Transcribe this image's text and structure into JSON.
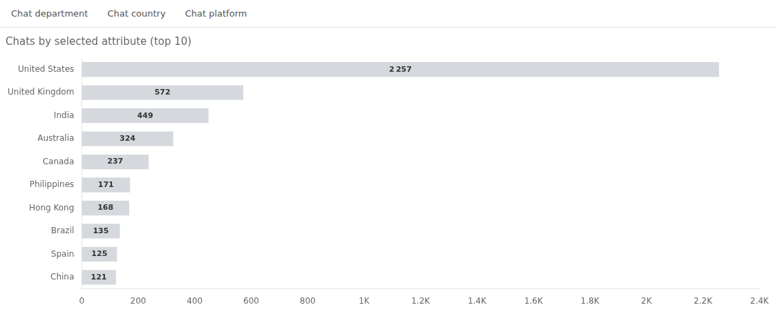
{
  "chart_data": {
    "type": "bar",
    "orientation": "horizontal",
    "title": "Chats by selected attribute (top 10)",
    "annotations": [
      "Chat department",
      "Chat country",
      "Chat platform"
    ],
    "categories": [
      "United States",
      "United Kingdom",
      "India",
      "Australia",
      "Canada",
      "Philippines",
      "Hong Kong",
      "Brazil",
      "Spain",
      "China"
    ],
    "values": [
      2257,
      572,
      449,
      324,
      237,
      171,
      168,
      135,
      125,
      121
    ],
    "value_labels": [
      "2 257",
      "572",
      "449",
      "324",
      "237",
      "171",
      "168",
      "135",
      "125",
      "121"
    ],
    "data_labels": true,
    "color": "#d5d9de",
    "xlim": [
      0,
      2400
    ],
    "xticks": [
      0,
      200,
      400,
      600,
      800,
      {
        "value": 1000,
        "label": "1K"
      },
      {
        "value": 1200,
        "label": "1.2K"
      },
      {
        "value": 1400,
        "label": "1.4K"
      },
      {
        "value": 1600,
        "label": "1.6K"
      },
      {
        "value": 1800,
        "label": "1.8K"
      },
      {
        "value": 2000,
        "label": "2K"
      },
      {
        "value": 2200,
        "label": "2.2K"
      },
      {
        "value": 2400,
        "label": "2.4K"
      }
    ],
    "grid": false
  }
}
